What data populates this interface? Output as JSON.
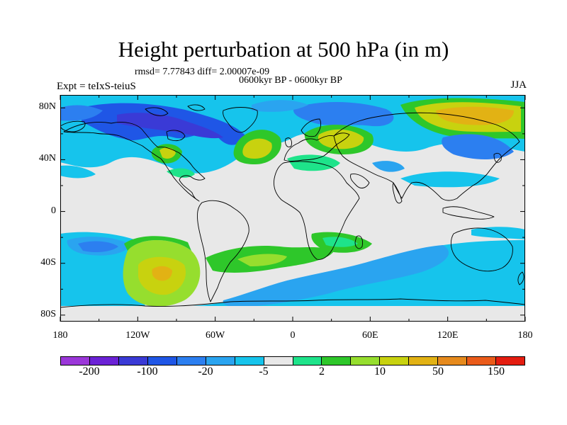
{
  "title": "Height perturbation at 500 hPa (in m)",
  "stats": "rmsd= 7.77843 diff= 2.00007e-09",
  "period": "0600kyr BP - 0600kyr BP",
  "expt": "Expt = teIxS-teiuS",
  "season": "JJA",
  "y_axis": {
    "labels": [
      "80N",
      "40N",
      "0",
      "40S",
      "80S"
    ],
    "lat_values": [
      80,
      40,
      0,
      -40,
      -80
    ]
  },
  "x_axis": {
    "labels": [
      "180",
      "120W",
      "60W",
      "0",
      "60E",
      "120E",
      "180"
    ],
    "lon_values": [
      -180,
      -120,
      -60,
      0,
      60,
      120,
      180
    ]
  },
  "colorbar": {
    "colors": [
      "#9b37d9",
      "#6b22d6",
      "#3a3ad6",
      "#1f56e6",
      "#2c7ff0",
      "#2aa4f0",
      "#16c4ec",
      "#e8e8e8",
      "#1ee38a",
      "#2ec72a",
      "#96de2e",
      "#c8d20f",
      "#e2b214",
      "#e68a1d",
      "#ea5b1a",
      "#e41d10"
    ],
    "labels": [
      "-200",
      "-100",
      "-20",
      "-5",
      "2",
      "10",
      "50",
      "150"
    ],
    "label_positions": [
      1,
      3,
      5,
      7,
      9,
      11,
      13,
      15
    ]
  },
  "map_colors": {
    "background": "#e8e8e8",
    "coast": "#000000"
  }
}
